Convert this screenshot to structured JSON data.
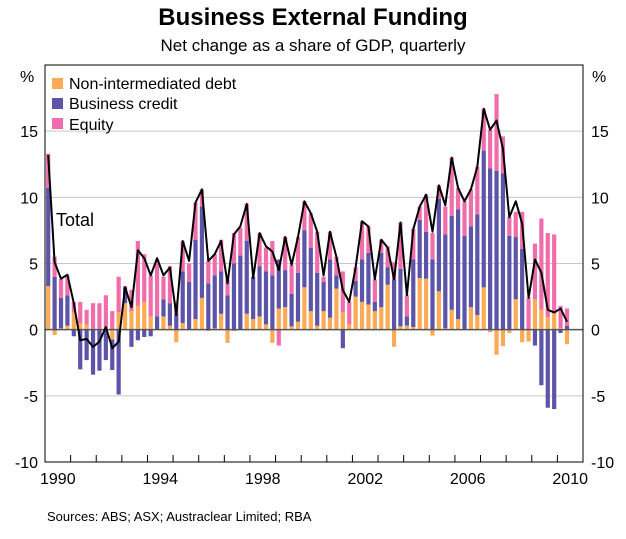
{
  "title": "Business External Funding",
  "subtitle": "Net change as a share of GDP, quarterly",
  "source": "Sources: ABS; ASX; Austraclear Limited; RBA",
  "colors": {
    "non_intermediated_debt": "#FBAA55",
    "business_credit": "#5B54A8",
    "equity": "#F06DAB",
    "total": "#000000",
    "grid": "#C8C8C8"
  },
  "chart_data": {
    "type": "bar",
    "stacked": true,
    "title": "Business External Funding",
    "subtitle": "Net change as a share of GDP, quarterly",
    "ylabel_left": "%",
    "ylabel_right": "%",
    "ylim": [
      -10,
      20
    ],
    "yticks": [
      -10,
      -5,
      0,
      5,
      10,
      15
    ],
    "xlim": [
      "1990",
      "2010"
    ],
    "xtick_labels": [
      "1990",
      "1994",
      "1998",
      "2002",
      "2006",
      "2010"
    ],
    "grid": true,
    "legend_position": "top-left",
    "annotations": [
      "Total"
    ],
    "categories": [
      "1990Q1",
      "1990Q2",
      "1990Q3",
      "1990Q4",
      "1991Q1",
      "1991Q2",
      "1991Q3",
      "1991Q4",
      "1992Q1",
      "1992Q2",
      "1992Q3",
      "1992Q4",
      "1993Q1",
      "1993Q2",
      "1993Q3",
      "1993Q4",
      "1994Q1",
      "1994Q2",
      "1994Q3",
      "1994Q4",
      "1995Q1",
      "1995Q2",
      "1995Q3",
      "1995Q4",
      "1996Q1",
      "1996Q2",
      "1996Q3",
      "1996Q4",
      "1997Q1",
      "1997Q2",
      "1997Q3",
      "1997Q4",
      "1998Q1",
      "1998Q2",
      "1998Q3",
      "1998Q4",
      "1999Q1",
      "1999Q2",
      "1999Q3",
      "1999Q4",
      "2000Q1",
      "2000Q2",
      "2000Q3",
      "2000Q4",
      "2001Q1",
      "2001Q2",
      "2001Q3",
      "2001Q4",
      "2002Q1",
      "2002Q2",
      "2002Q3",
      "2002Q4",
      "2003Q1",
      "2003Q2",
      "2003Q3",
      "2003Q4",
      "2004Q1",
      "2004Q2",
      "2004Q3",
      "2004Q4",
      "2005Q1",
      "2005Q2",
      "2005Q3",
      "2005Q4",
      "2006Q1",
      "2006Q2",
      "2006Q3",
      "2006Q4",
      "2007Q1",
      "2007Q2",
      "2007Q3",
      "2007Q4",
      "2008Q1",
      "2008Q2",
      "2008Q3",
      "2008Q4",
      "2009Q1",
      "2009Q2",
      "2009Q3",
      "2009Q4",
      "2010Q1",
      "2010Q2"
    ],
    "series": [
      {
        "name": "Non-intermediated debt",
        "type": "bar",
        "values": [
          3.3,
          -0.4,
          0.1,
          0.3,
          1.3,
          0.5,
          0.4,
          0,
          0,
          0,
          -0.75,
          1.3,
          2.0,
          1.4,
          1.8,
          2.1,
          1.0,
          0,
          1.0,
          0.3,
          -0.95,
          0.5,
          0,
          0.8,
          2.4,
          -0.1,
          0.1,
          1.2,
          -1.0,
          -0.1,
          0,
          1.2,
          0.8,
          1.0,
          0.4,
          -1.0,
          1.6,
          1.7,
          0.25,
          0.6,
          3.2,
          1.4,
          0.3,
          1.4,
          0.9,
          3.1,
          1.3,
          0.4,
          2.5,
          2.1,
          1.9,
          1.4,
          1.7,
          3.4,
          -1.3,
          0.25,
          0.3,
          0.2,
          3.9,
          3.85,
          -0.45,
          2.9,
          0.1,
          1.5,
          0.8,
          0,
          1.7,
          1.1,
          3.2,
          -0.2,
          -1.9,
          -1.25,
          -0.25,
          2.3,
          -0.95,
          -0.9,
          2.3,
          1.5,
          0.95,
          1.25,
          0.1,
          -1.1
        ]
      },
      {
        "name": "Business credit",
        "type": "bar",
        "values": [
          7.4,
          4.0,
          2.3,
          2.3,
          -0.5,
          -3.0,
          -2.3,
          -3.4,
          -3.1,
          -2.3,
          -2.3,
          -4.9,
          1.2,
          -1.3,
          -0.8,
          -0.55,
          -0.5,
          1.0,
          1.3,
          1.7,
          1.2,
          3.9,
          3.6,
          6.0,
          6.9,
          3.5,
          4.0,
          3.2,
          2.6,
          5.0,
          5.6,
          5.5,
          3.2,
          3.8,
          4.0,
          4.1,
          3.7,
          2.8,
          2.45,
          3.7,
          4.3,
          4.8,
          4.0,
          2.2,
          4.4,
          1.0,
          -1.4,
          0,
          1.2,
          3.2,
          3.9,
          0.7,
          4.1,
          1.3,
          3.8,
          4.35,
          0.7,
          5.1,
          4.4,
          3.55,
          5.3,
          7.0,
          7.1,
          7.1,
          8.3,
          7.1,
          6.1,
          7.6,
          10.3,
          12.2,
          12.0,
          11.8,
          7.1,
          4.7,
          6.1,
          0,
          -1.2,
          -4.2,
          -5.9,
          -6.0,
          -0.25,
          0.3
        ]
      },
      {
        "name": "Equity",
        "type": "bar",
        "values": [
          2.6,
          1.5,
          1.45,
          1.5,
          0.8,
          1.6,
          1.1,
          2.0,
          2.0,
          2.6,
          1.4,
          2.7,
          0.1,
          1.6,
          4.9,
          3.6,
          3.1,
          4.3,
          1.7,
          2.8,
          0.9,
          2.3,
          1.4,
          2.8,
          1.3,
          1.7,
          1.6,
          2.4,
          1.2,
          2.3,
          2.1,
          2.8,
          0,
          2.5,
          1.8,
          2.6,
          -1.2,
          2.5,
          2.2,
          2.7,
          2.2,
          2.6,
          3.1,
          0.4,
          2.1,
          1.4,
          3.1,
          1.7,
          1.0,
          2.9,
          2.0,
          1.7,
          1.0,
          1.6,
          1.3,
          3.5,
          1.6,
          2.3,
          1.0,
          2.8,
          2.0,
          1.0,
          2.1,
          4.4,
          1.6,
          2.6,
          2.8,
          3.6,
          3.2,
          2.9,
          5.8,
          2.8,
          1.4,
          1.9,
          2.8,
          2.4,
          4.2,
          6.9,
          6.35,
          5.95,
          1.7,
          1.3
        ]
      },
      {
        "name": "Total",
        "type": "line",
        "values": [
          13.2,
          5.1,
          3.85,
          4.15,
          2.0,
          -0.8,
          -0.7,
          -1.3,
          -0.9,
          0.2,
          -1.4,
          -0.9,
          3.2,
          1.7,
          6.0,
          5.4,
          4.1,
          5.4,
          4.1,
          4.7,
          1.1,
          6.7,
          5.2,
          9.6,
          10.6,
          5.2,
          5.7,
          6.7,
          3.5,
          7.2,
          7.8,
          9.5,
          3.9,
          7.3,
          6.3,
          5.9,
          4.5,
          7.0,
          4.9,
          7.0,
          9.7,
          8.8,
          7.4,
          4.1,
          7.4,
          5.5,
          3.0,
          2.1,
          4.7,
          8.2,
          7.8,
          3.8,
          6.8,
          6.2,
          3.8,
          8.1,
          2.6,
          7.6,
          9.3,
          10.2,
          7.4,
          10.9,
          9.4,
          13.0,
          10.7,
          9.7,
          10.6,
          12.3,
          16.7,
          15.1,
          15.8,
          13.7,
          8.5,
          9.7,
          8.0,
          2.4,
          5.3,
          4.3,
          1.5,
          1.3,
          1.6,
          0.6
        ]
      }
    ]
  }
}
